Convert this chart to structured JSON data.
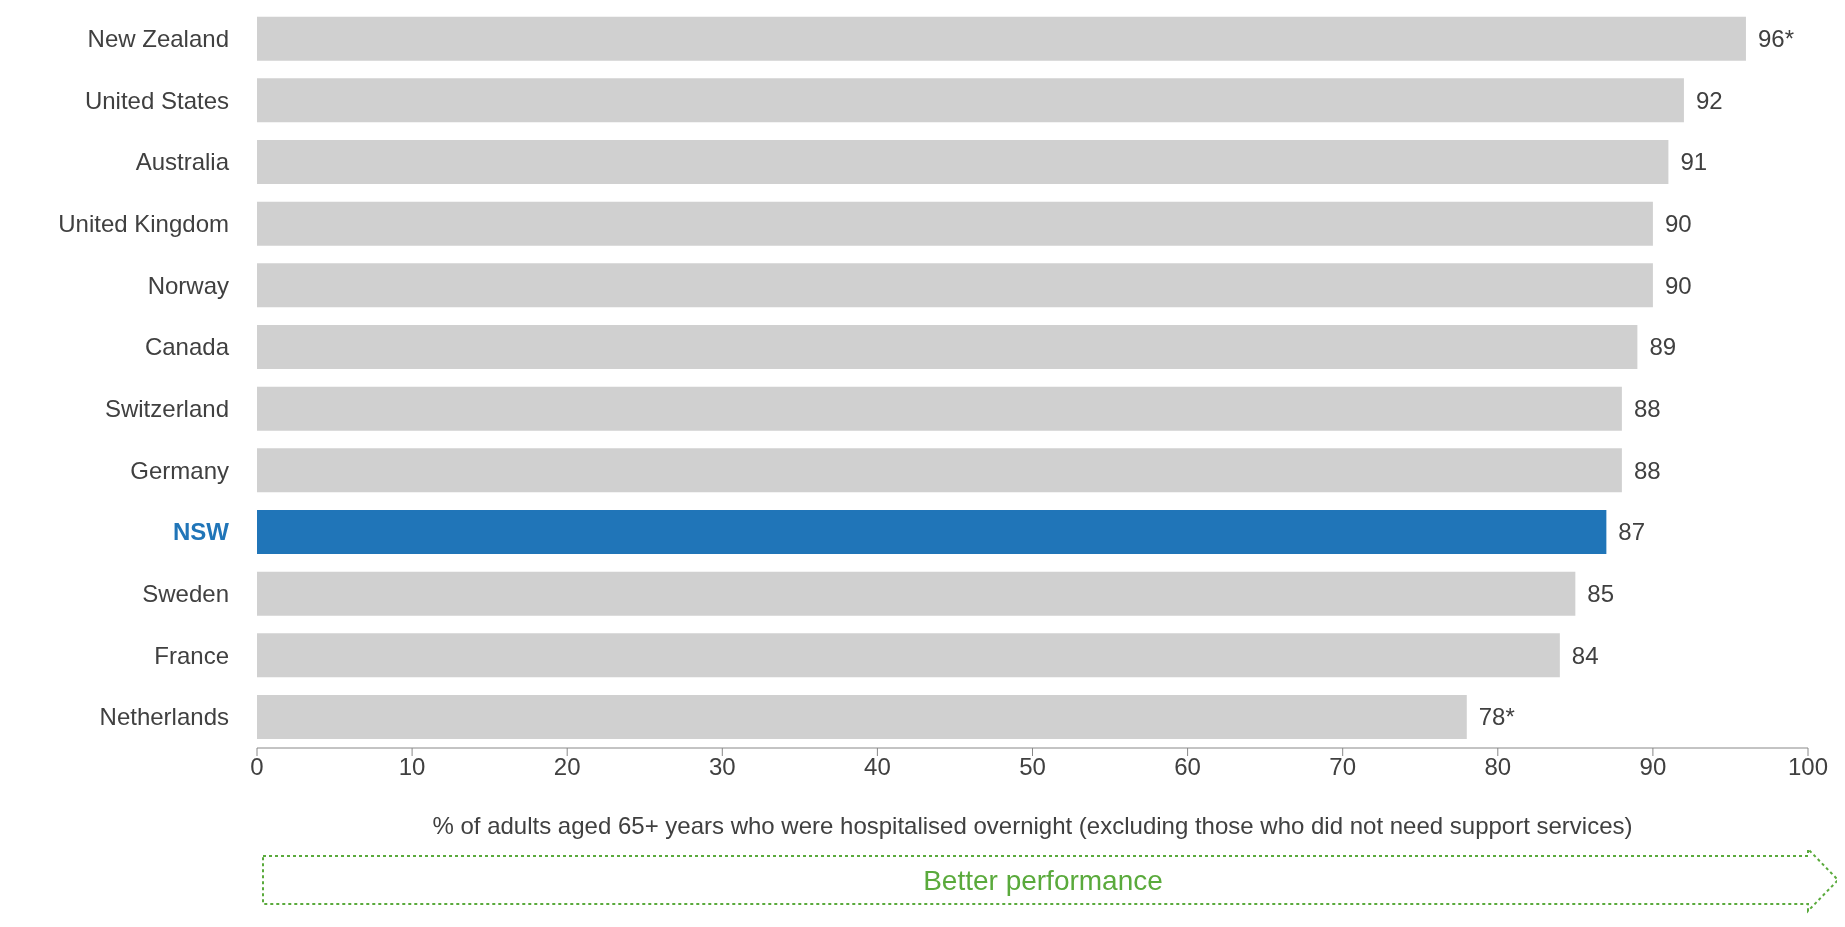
{
  "chart_data": {
    "type": "bar",
    "orientation": "horizontal",
    "categories": [
      "New Zealand",
      "United States",
      "Australia",
      "United Kingdom",
      "Norway",
      "Canada",
      "Switzerland",
      "Germany",
      "NSW",
      "Sweden",
      "France",
      "Netherlands"
    ],
    "values": [
      96,
      92,
      91,
      90,
      90,
      89,
      88,
      88,
      87,
      85,
      84,
      78
    ],
    "colors": [
      "#d0d0d0",
      "#d0d0d0",
      "#d0d0d0",
      "#d0d0d0",
      "#d0d0d0",
      "#d0d0d0",
      "#d0d0d0",
      "#d0d0d0",
      "#2075b8",
      "#d0d0d0",
      "#d0d0d0",
      "#d0d0d0"
    ],
    "value_labels": [
      "96*",
      "92",
      "91",
      "90",
      "90",
      "89",
      "88",
      "88",
      "87",
      "85",
      "84",
      "78*"
    ],
    "xlim": [
      0,
      100
    ],
    "xticks": [
      0,
      10,
      20,
      30,
      40,
      50,
      60,
      70,
      80,
      90,
      100
    ],
    "xlabel": "% of adults aged 65+ years who were hospitalised overnight (excluding those who did not need support services)",
    "annotations": [
      "Better performance"
    ],
    "grid": false,
    "legend": false
  }
}
